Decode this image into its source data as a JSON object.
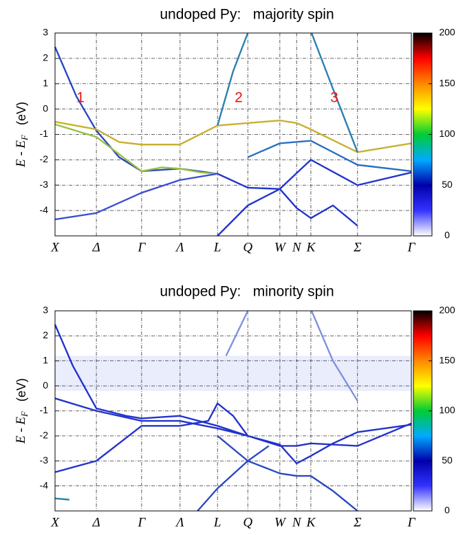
{
  "chart_data": [
    {
      "type": "line",
      "title": "undoped Py:   majority spin",
      "ylabel": {
        "symbol": "E - E",
        "subscript": "F",
        "unit": "(eV)"
      },
      "xlim": [
        0,
        1
      ],
      "ylim": [
        -5,
        3
      ],
      "xticks": [
        {
          "value": 0,
          "label": "X"
        },
        {
          "value": 0.116,
          "label": "Δ"
        },
        {
          "value": 0.243,
          "label": "Γ"
        },
        {
          "value": 0.351,
          "label": "Λ"
        },
        {
          "value": 0.456,
          "label": "L"
        },
        {
          "value": 0.541,
          "label": "Q"
        },
        {
          "value": 0.631,
          "label": "W"
        },
        {
          "value": 0.678,
          "label": "N"
        },
        {
          "value": 0.718,
          "label": "K"
        },
        {
          "value": 0.849,
          "label": "Σ"
        },
        {
          "value": 1,
          "label": "Γ"
        }
      ],
      "yticks": [
        3,
        2,
        1,
        0,
        -1,
        -2,
        -3,
        -4
      ],
      "grid": true,
      "colorbar": {
        "lim": [
          0,
          200
        ],
        "ticks": [
          0,
          50,
          100,
          150,
          200
        ],
        "colormap": [
          "#ffffff",
          "#3333ff",
          "#0000aa",
          "#00aaff",
          "#00cc33",
          "#ffff00",
          "#ff8800",
          "#ff0000",
          "#000000"
        ]
      },
      "annotations": [
        "1",
        "2",
        "3"
      ],
      "annotation_color": "#ee1111",
      "series": [
        {
          "color": "#2a48c0",
          "x": [
            0,
            0.06,
            0.116,
            0.18,
            0.243,
            0.35,
            0.456
          ],
          "y": [
            2.45,
            0.5,
            -0.85,
            -1.9,
            -2.45,
            -2.35,
            -2.55
          ]
        },
        {
          "color": "#c8b030",
          "x": [
            0,
            0.116,
            0.18,
            0.243,
            0.35,
            0.456,
            0.541,
            0.631,
            0.678,
            0.718,
            0.849,
            1
          ],
          "y": [
            -0.5,
            -0.8,
            -1.3,
            -1.4,
            -1.4,
            -0.65,
            -0.55,
            -0.45,
            -0.55,
            -0.8,
            -1.7,
            -1.35
          ]
        },
        {
          "color": "#9ac040",
          "x": [
            0,
            0.116,
            0.243,
            0.3,
            0.35,
            0.41,
            0.456
          ],
          "y": [
            -0.6,
            -1.1,
            -2.45,
            -2.3,
            -2.35,
            -2.5,
            -2.55
          ]
        },
        {
          "color": "#3b4fd0",
          "x": [
            0,
            0.116,
            0.243,
            0.35,
            0.456
          ],
          "y": [
            -4.35,
            -4.1,
            -3.3,
            -2.8,
            -2.55
          ]
        },
        {
          "color": "#2a7fb0",
          "x": [
            0.456,
            0.5,
            0.541
          ],
          "y": [
            -0.65,
            1.5,
            3
          ]
        },
        {
          "color": "#2a7fb0",
          "x": [
            0.72,
            0.78,
            0.849
          ],
          "y": [
            3,
            0.8,
            -1.7
          ]
        },
        {
          "color": "#2233cc",
          "x": [
            0.456,
            0.541,
            0.631,
            0.68,
            0.718,
            0.849,
            1
          ],
          "y": [
            -2.55,
            -3.1,
            -3.15,
            -2.5,
            -2.0,
            -3.0,
            -2.5
          ]
        },
        {
          "color": "#2233cc",
          "x": [
            0.456,
            0.541,
            0.631,
            0.678,
            0.718,
            0.78,
            0.849
          ],
          "y": [
            -5,
            -3.8,
            -3.15,
            -3.9,
            -4.3,
            -3.8,
            -4.6
          ]
        },
        {
          "color": "#2a6fc0",
          "x": [
            0.541,
            0.631,
            0.718,
            0.849,
            1
          ],
          "y": [
            -1.9,
            -1.35,
            -1.25,
            -2.2,
            -2.45
          ]
        }
      ]
    },
    {
      "type": "line",
      "title": "undoped Py:   minority spin",
      "ylabel": {
        "symbol": "E - E",
        "subscript": "F",
        "unit": "(eV)"
      },
      "xlim": [
        0,
        1
      ],
      "ylim": [
        -5,
        3
      ],
      "xticks": [
        {
          "value": 0,
          "label": "X"
        },
        {
          "value": 0.116,
          "label": "Δ"
        },
        {
          "value": 0.243,
          "label": "Γ"
        },
        {
          "value": 0.351,
          "label": "Λ"
        },
        {
          "value": 0.456,
          "label": "L"
        },
        {
          "value": 0.541,
          "label": "Q"
        },
        {
          "value": 0.631,
          "label": "W"
        },
        {
          "value": 0.678,
          "label": "N"
        },
        {
          "value": 0.718,
          "label": "K"
        },
        {
          "value": 0.849,
          "label": "Σ"
        },
        {
          "value": 1,
          "label": "Γ"
        }
      ],
      "yticks": [
        3,
        2,
        1,
        0,
        -1,
        -2,
        -3,
        -4
      ],
      "grid": true,
      "colorbar": {
        "lim": [
          0,
          200
        ],
        "ticks": [
          0,
          50,
          100,
          150,
          200
        ],
        "colormap": [
          "#ffffff",
          "#3333ff",
          "#0000aa",
          "#00aaff",
          "#00cc33",
          "#ffff00",
          "#ff8800",
          "#ff0000",
          "#000000"
        ]
      },
      "series": [
        {
          "color": "#2233cc",
          "x": [
            0,
            0.05,
            0.116,
            0.2,
            0.243,
            0.35,
            0.456,
            0.541,
            0.631,
            0.678,
            0.718,
            0.849,
            1
          ],
          "y": [
            2.45,
            0.8,
            -0.9,
            -1.2,
            -1.3,
            -1.2,
            -1.6,
            -2.0,
            -2.4,
            -2.4,
            -2.3,
            -2.4,
            -1.5
          ]
        },
        {
          "color": "#2233cc",
          "x": [
            0,
            0.116,
            0.243,
            0.35,
            0.43,
            0.456,
            0.5,
            0.541
          ],
          "y": [
            -3.45,
            -3.0,
            -1.6,
            -1.6,
            -1.4,
            -0.7,
            -1.2,
            -2.0
          ]
        },
        {
          "color": "#2233cc",
          "x": [
            0,
            0.116,
            0.243,
            0.35,
            0.456,
            0.541,
            0.631,
            0.678,
            0.718,
            0.78,
            0.849,
            1
          ],
          "y": [
            -0.5,
            -1.0,
            -1.4,
            -1.4,
            -1.7,
            -2.0,
            -2.35,
            -3.1,
            -2.8,
            -2.3,
            -1.85,
            -1.55
          ]
        },
        {
          "color": "#8090e0",
          "x": [
            0.48,
            0.541
          ],
          "y": [
            1.2,
            3
          ]
        },
        {
          "color": "#8090e0",
          "x": [
            0.72,
            0.78,
            0.849
          ],
          "y": [
            3,
            1.0,
            -0.6
          ]
        },
        {
          "color": "#2a48c0",
          "x": [
            0.456,
            0.541,
            0.631,
            0.678,
            0.718,
            0.78,
            0.849
          ],
          "y": [
            -2.0,
            -3.0,
            -3.5,
            -3.6,
            -3.6,
            -4.2,
            -5
          ]
        },
        {
          "color": "#2a48c0",
          "x": [
            0.4,
            0.456,
            0.541,
            0.6
          ],
          "y": [
            -5,
            -4.1,
            -3.0,
            -2.4
          ]
        },
        {
          "color": "#2a7fb0",
          "x": [
            0,
            0.04
          ],
          "y": [
            -4.5,
            -4.55
          ]
        }
      ]
    }
  ]
}
